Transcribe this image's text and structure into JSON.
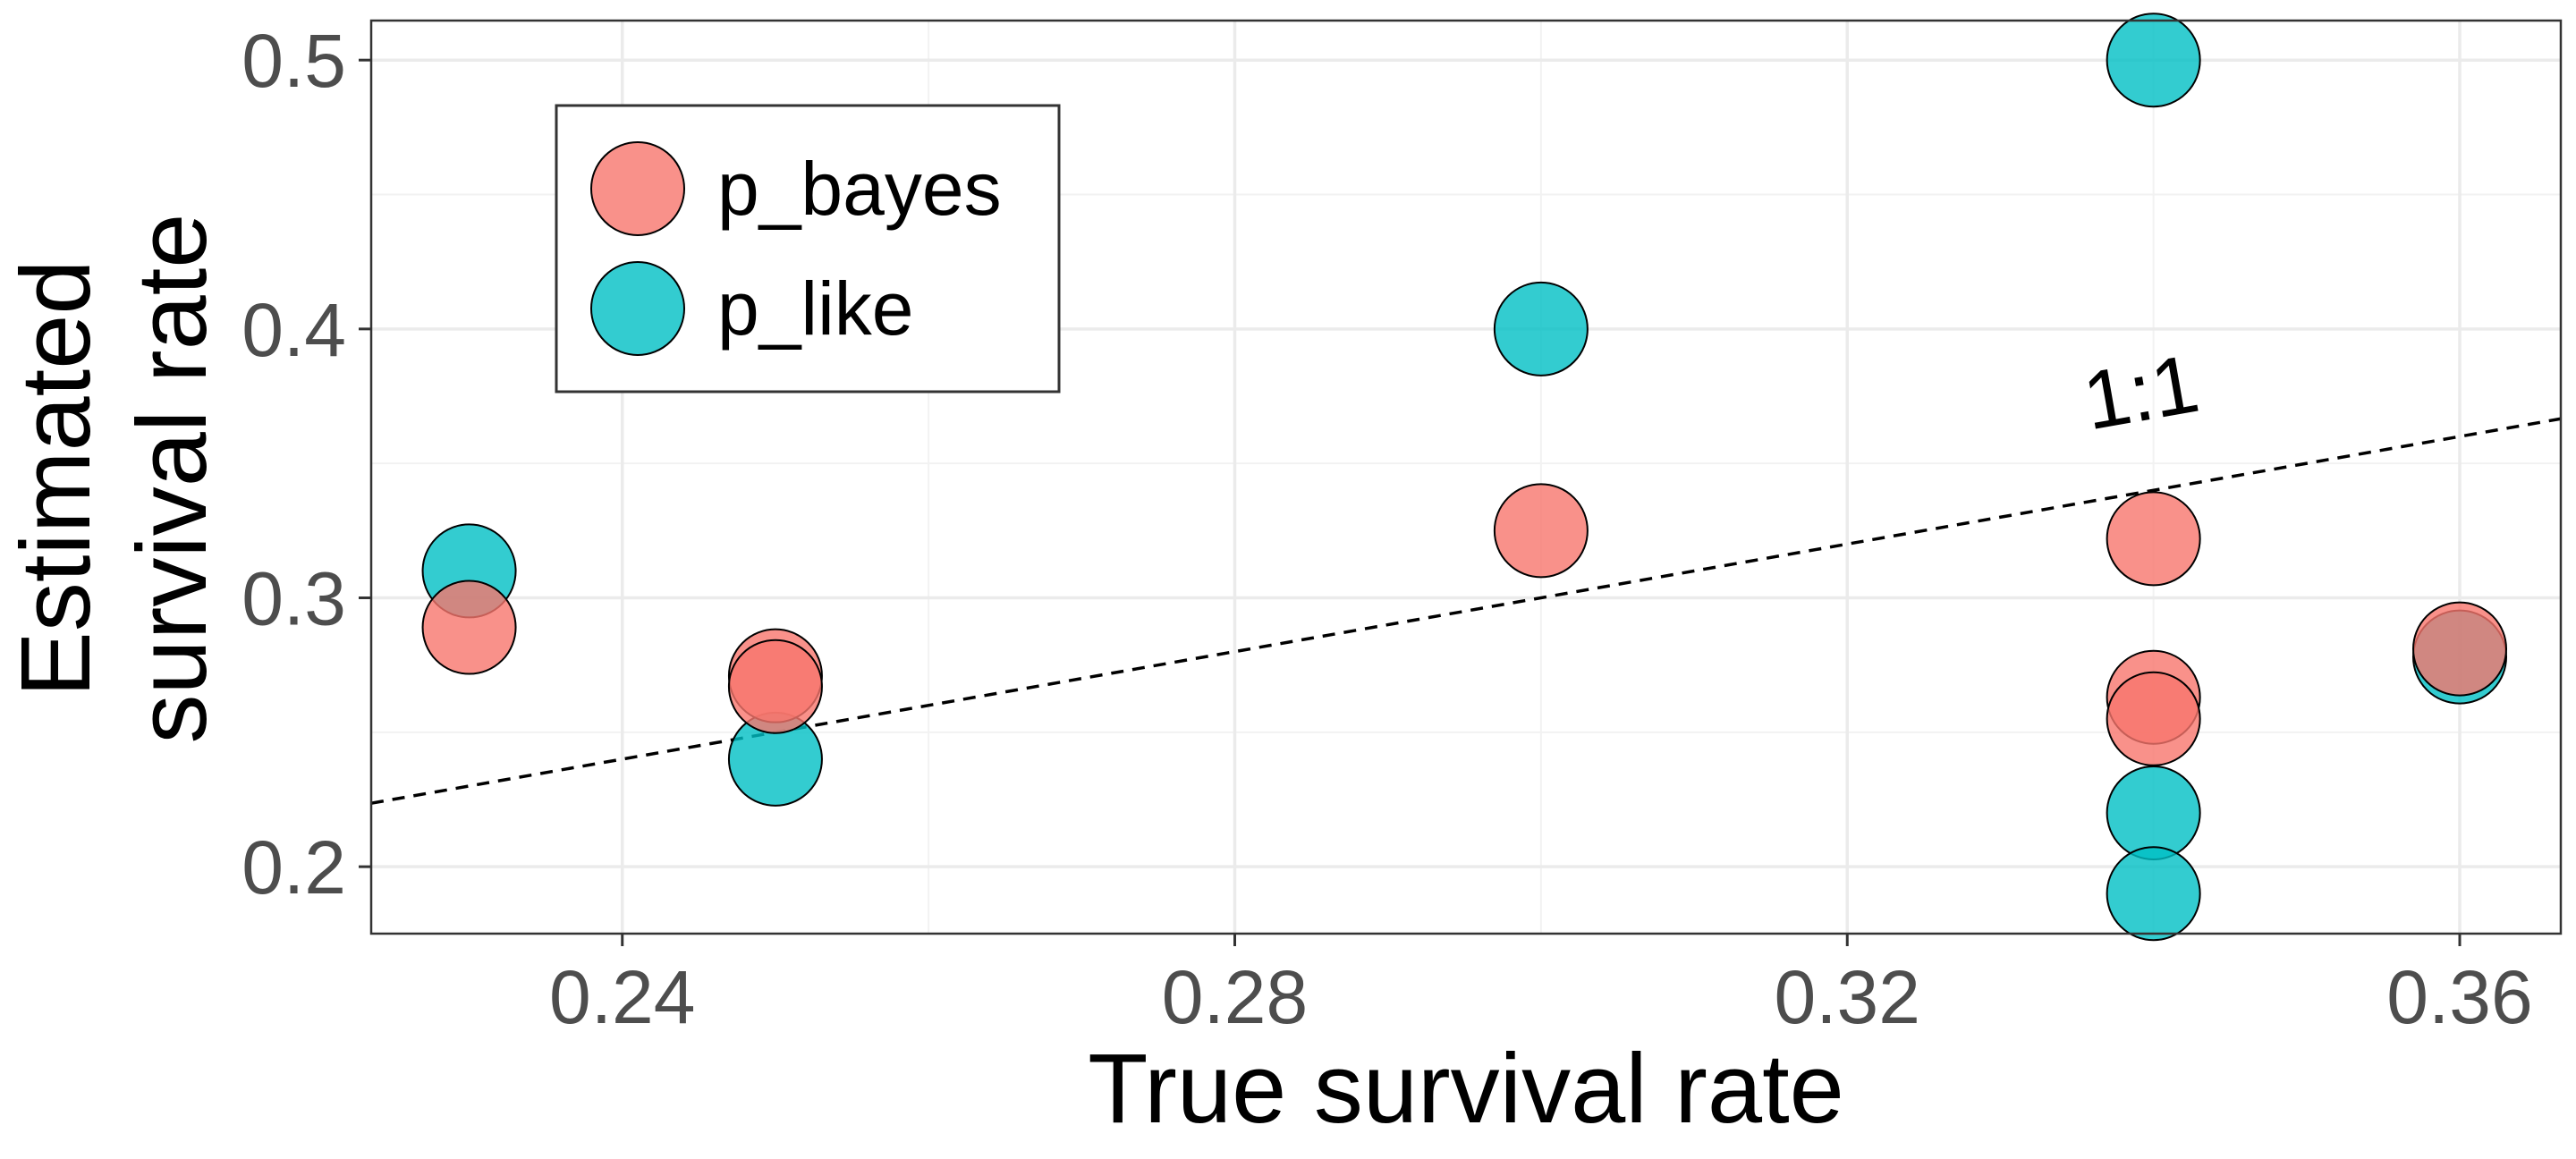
{
  "chart_data": {
    "type": "scatter",
    "title": "",
    "xlabel": "True survival rate",
    "ylabel_lines": [
      "Estimated",
      "survival rate"
    ],
    "xlim": [
      0.2236,
      0.3666
    ],
    "ylim": [
      0.1751,
      0.5147
    ],
    "x_ticks": [
      0.24,
      0.28,
      0.32,
      0.36
    ],
    "x_tick_labels": [
      "0.24",
      "0.28",
      "0.32",
      "0.36"
    ],
    "x_minor": [
      0.26,
      0.3,
      0.34
    ],
    "y_ticks": [
      0.2,
      0.3,
      0.4,
      0.5
    ],
    "y_tick_labels": [
      "0.2",
      "0.3",
      "0.4",
      "0.5"
    ],
    "y_minor": [
      0.25,
      0.35,
      0.45
    ],
    "grid": true,
    "reference_line": {
      "label": "1:1",
      "slope": 1,
      "intercept": 0,
      "style": "dashed"
    },
    "legend": {
      "position": "top-left",
      "entries": [
        "p_bayes",
        "p_like"
      ]
    },
    "series": [
      {
        "name": "p_like",
        "color": "#00BFC4",
        "points": [
          {
            "x": 0.23,
            "y": 0.31
          },
          {
            "x": 0.25,
            "y": 0.24
          },
          {
            "x": 0.3,
            "y": 0.4
          },
          {
            "x": 0.34,
            "y": 0.5
          },
          {
            "x": 0.34,
            "y": 0.22
          },
          {
            "x": 0.34,
            "y": 0.19
          },
          {
            "x": 0.36,
            "y": 0.278
          }
        ]
      },
      {
        "name": "p_bayes",
        "color": "#F8766D",
        "points": [
          {
            "x": 0.23,
            "y": 0.289
          },
          {
            "x": 0.25,
            "y": 0.271
          },
          {
            "x": 0.25,
            "y": 0.267
          },
          {
            "x": 0.3,
            "y": 0.325
          },
          {
            "x": 0.34,
            "y": 0.322
          },
          {
            "x": 0.34,
            "y": 0.263
          },
          {
            "x": 0.34,
            "y": 0.255
          },
          {
            "x": 0.36,
            "y": 0.281
          }
        ]
      }
    ]
  }
}
